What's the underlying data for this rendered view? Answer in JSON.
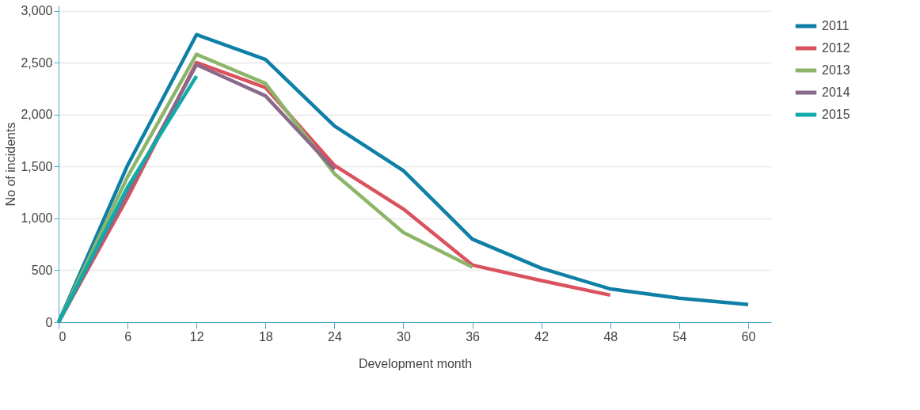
{
  "chart_data": {
    "type": "line",
    "xlabel": "Development month",
    "ylabel": "No of incidents",
    "x": [
      0,
      6,
      12,
      18,
      24,
      30,
      36,
      42,
      48,
      54,
      60
    ],
    "xlim": [
      0,
      62
    ],
    "xticks": [
      0,
      6,
      12,
      18,
      24,
      30,
      36,
      42,
      48,
      54,
      60
    ],
    "ylim": [
      0,
      3050
    ],
    "yticks": [
      {
        "value": 0,
        "label": "0"
      },
      {
        "value": 500,
        "label": "500"
      },
      {
        "value": 1000,
        "label": "1,000"
      },
      {
        "value": 1500,
        "label": "1,500"
      },
      {
        "value": 2000,
        "label": "2,000"
      },
      {
        "value": 2500,
        "label": "2,500"
      },
      {
        "value": 3000,
        "label": "3,000"
      }
    ],
    "grid": "y",
    "legend": "right",
    "marker": "none",
    "line_style": "solid",
    "series": [
      {
        "name": "2011",
        "color": "#0e7fa6",
        "values": [
          0,
          1510,
          2770,
          2530,
          1890,
          1460,
          800,
          520,
          320,
          230,
          170
        ]
      },
      {
        "name": "2012",
        "color": "#d9525e",
        "values": [
          0,
          1200,
          2500,
          2260,
          1510,
          1090,
          550,
          400,
          260,
          null,
          null
        ]
      },
      {
        "name": "2013",
        "color": "#8cb56a",
        "values": [
          0,
          1400,
          2580,
          2300,
          1430,
          864,
          530,
          null,
          null,
          null,
          null
        ]
      },
      {
        "name": "2014",
        "color": "#8a6a8a",
        "values": [
          0,
          1250,
          2480,
          2180,
          1470,
          null,
          null,
          null,
          null,
          null,
          null
        ]
      },
      {
        "name": "2015",
        "color": "#10aaa9",
        "values": [
          0,
          1300,
          2370,
          null,
          null,
          null,
          null,
          null,
          null,
          null,
          null
        ]
      }
    ]
  }
}
